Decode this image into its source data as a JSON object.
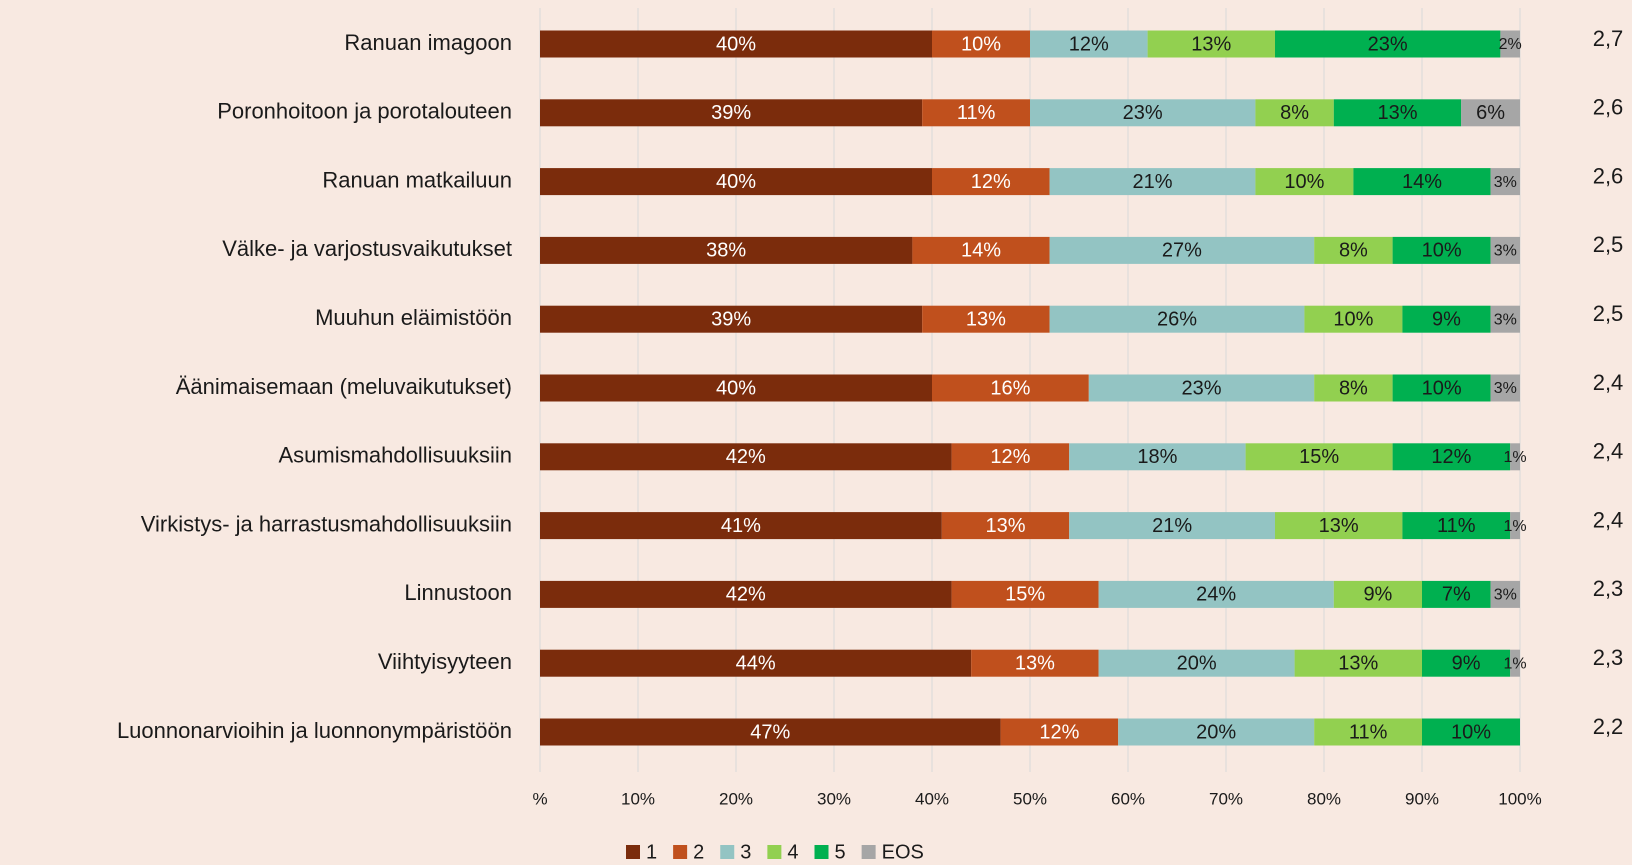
{
  "chart_data": {
    "type": "stacked-barh",
    "categories": [
      "Ranuan imagoon",
      "Poronhoitoon ja porotalouteen",
      "Ranuan matkailuun",
      "Välke- ja varjostusvaikutukset",
      "Muuhun eläimistöön",
      "Äänimaisemaan (meluvaikutukset)",
      "Asumismahdollisuuksiin",
      "Virkistys- ja harrastusmahdollisuuksiin",
      "Linnustoon",
      "Viihtyisyyteen",
      "Luonnonarvioihin ja luonnonympäristöön"
    ],
    "series": [
      {
        "name": "1",
        "color": "#7b2c0c",
        "label_color": "#ffffff",
        "values": [
          40,
          39,
          40,
          38,
          39,
          40,
          42,
          41,
          42,
          44,
          47
        ],
        "value_labels": [
          "40%",
          "39%",
          "40%",
          "38%",
          "39%",
          "40%",
          "42%",
          "41%",
          "42%",
          "44%",
          "47%"
        ]
      },
      {
        "name": "2",
        "color": "#c0501d",
        "label_color": "#ffffff",
        "values": [
          10,
          11,
          12,
          14,
          13,
          16,
          12,
          13,
          15,
          13,
          12
        ],
        "value_labels": [
          "10%",
          "11%",
          "12%",
          "14%",
          "13%",
          "16%",
          "12%",
          "13%",
          "15%",
          "13%",
          "12%"
        ]
      },
      {
        "name": "3",
        "color": "#93c4c3",
        "label_color": "#1a1a1a",
        "values": [
          12,
          23,
          21,
          27,
          26,
          23,
          18,
          21,
          24,
          20,
          20
        ],
        "value_labels": [
          "12%",
          "23%",
          "21%",
          "27%",
          "26%",
          "23%",
          "18%",
          "21%",
          "24%",
          "20%",
          "20%"
        ]
      },
      {
        "name": "4",
        "color": "#92d050",
        "label_color": "#1a1a1a",
        "values": [
          13,
          8,
          10,
          8,
          10,
          8,
          15,
          13,
          9,
          13,
          11
        ],
        "value_labels": [
          "13%",
          "8%",
          "10%",
          "8%",
          "10%",
          "8%",
          "15%",
          "13%",
          "9%",
          "13%",
          "11%"
        ]
      },
      {
        "name": "5",
        "color": "#00b050",
        "label_color": "#1a1a1a",
        "values": [
          23,
          13,
          14,
          10,
          9,
          10,
          12,
          11,
          7,
          9,
          10
        ],
        "value_labels": [
          "23%",
          "13%",
          "14%",
          "10%",
          "9%",
          "10%",
          "12%",
          "11%",
          "7%",
          "9%",
          "10%"
        ]
      },
      {
        "name": "EOS",
        "color": "#a6a6a6",
        "label_color": "#1a1a1a",
        "values": [
          2,
          6,
          3,
          3,
          3,
          3,
          1,
          1,
          3,
          1,
          null
        ],
        "value_labels": [
          "2%",
          "6%",
          "3%",
          "3%",
          "3%",
          "3%",
          "1%",
          "1%",
          "3%",
          "1%",
          null
        ]
      }
    ],
    "mean_labels": [
      "2,7",
      "2,6",
      "2,6",
      "2,5",
      "2,5",
      "2,4",
      "2,4",
      "2,4",
      "2,3",
      "2,3",
      "2,2"
    ],
    "xlim": [
      0,
      100
    ],
    "xticks": [
      {
        "value": 0,
        "label": "%"
      },
      {
        "value": 10,
        "label": "10%"
      },
      {
        "value": 20,
        "label": "20%"
      },
      {
        "value": 30,
        "label": "30%"
      },
      {
        "value": 40,
        "label": "40%"
      },
      {
        "value": 50,
        "label": "50%"
      },
      {
        "value": 60,
        "label": "60%"
      },
      {
        "value": 70,
        "label": "70%"
      },
      {
        "value": 80,
        "label": "80%"
      },
      {
        "value": 90,
        "label": "90%"
      },
      {
        "value": 100,
        "label": "100%"
      }
    ],
    "grid": true,
    "legend": "bottom"
  }
}
